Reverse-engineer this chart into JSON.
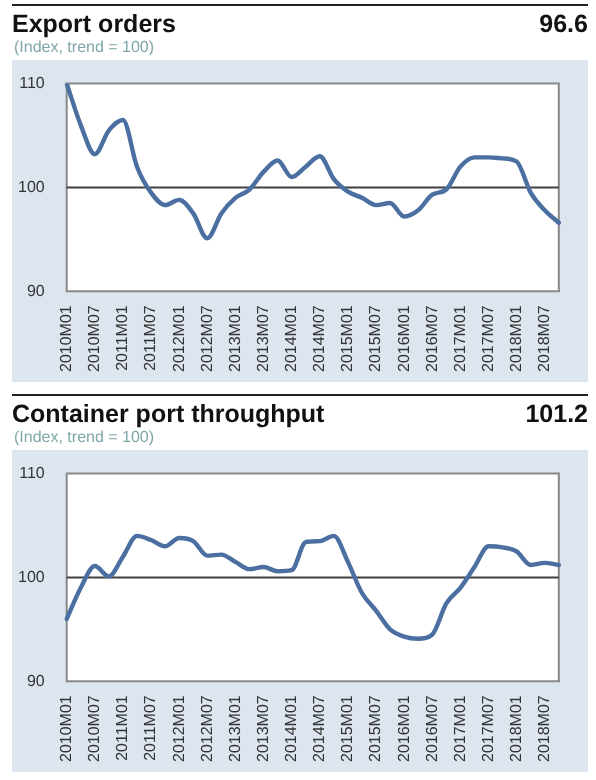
{
  "chart_data": [
    {
      "type": "line",
      "title": "Export orders",
      "subtitle": "(Index, trend = 100)",
      "annotations": [
        "96.6"
      ],
      "categories": [
        "2010M01",
        null,
        "2010M07",
        null,
        "2011M01",
        null,
        "2011M07",
        null,
        "2012M01",
        null,
        "2012M07",
        null,
        "2013M01",
        null,
        "2013M07",
        null,
        "2014M01",
        null,
        "2014M07",
        null,
        "2015M01",
        null,
        "2015M07",
        null,
        "2016M01",
        null,
        "2016M07",
        null,
        "2017M01",
        null,
        "2017M07",
        null,
        "2018M01",
        null,
        "2018M07",
        null
      ],
      "series": [
        {
          "color": "#4a6fa0",
          "values": [
            110,
            106,
            103.2,
            105.5,
            106.5,
            102,
            99.5,
            98.3,
            98.8,
            97.5,
            95.1,
            97.5,
            99.0,
            99.8,
            101.5,
            102.6,
            101,
            102,
            103,
            100.8,
            99.6,
            99.0,
            98.3,
            98.5,
            97.2,
            97.8,
            99.3,
            99.8,
            102,
            102.9,
            102.9,
            102.8,
            102.5,
            99.5,
            97.8,
            96.6
          ]
        }
      ],
      "ylim": [
        90,
        110
      ],
      "yticks": [
        90,
        100,
        110
      ],
      "grid": false,
      "legend": false,
      "marker": "none",
      "line_style": "solid",
      "ref_lines": [
        {
          "axis": "y",
          "value": 100,
          "color": "#404040"
        }
      ]
    },
    {
      "type": "line",
      "title": "Container port throughput",
      "subtitle": "(Index, trend = 100)",
      "annotations": [
        "101.2"
      ],
      "categories": [
        "2010M01",
        null,
        "2010M07",
        null,
        "2011M01",
        null,
        "2011M07",
        null,
        "2012M01",
        null,
        "2012M07",
        null,
        "2013M01",
        null,
        "2013M07",
        null,
        "2014M01",
        null,
        "2014M07",
        null,
        "2015M01",
        null,
        "2015M07",
        null,
        "2016M01",
        null,
        "2016M07",
        null,
        "2017M01",
        null,
        "2017M07",
        null,
        "2018M01",
        null,
        "2018M07",
        null
      ],
      "series": [
        {
          "color": "#4a6fa0",
          "values": [
            96,
            99,
            101.1,
            100.1,
            102,
            104,
            103.6,
            103,
            103.8,
            103.5,
            102.1,
            102.2,
            101.5,
            100.8,
            101,
            100.6,
            100.7,
            103.4,
            103.5,
            104,
            101.5,
            98.5,
            96.8,
            95,
            94.3,
            94.1,
            94.5,
            97.5,
            99,
            101,
            103,
            102.9,
            102.5,
            101.2,
            101.4,
            101.2
          ]
        }
      ],
      "ylim": [
        90,
        110
      ],
      "yticks": [
        90,
        100,
        110
      ],
      "grid": false,
      "legend": false,
      "marker": "none",
      "line_style": "solid",
      "ref_lines": [
        {
          "axis": "y",
          "value": 100,
          "color": "#404040"
        }
      ]
    }
  ]
}
